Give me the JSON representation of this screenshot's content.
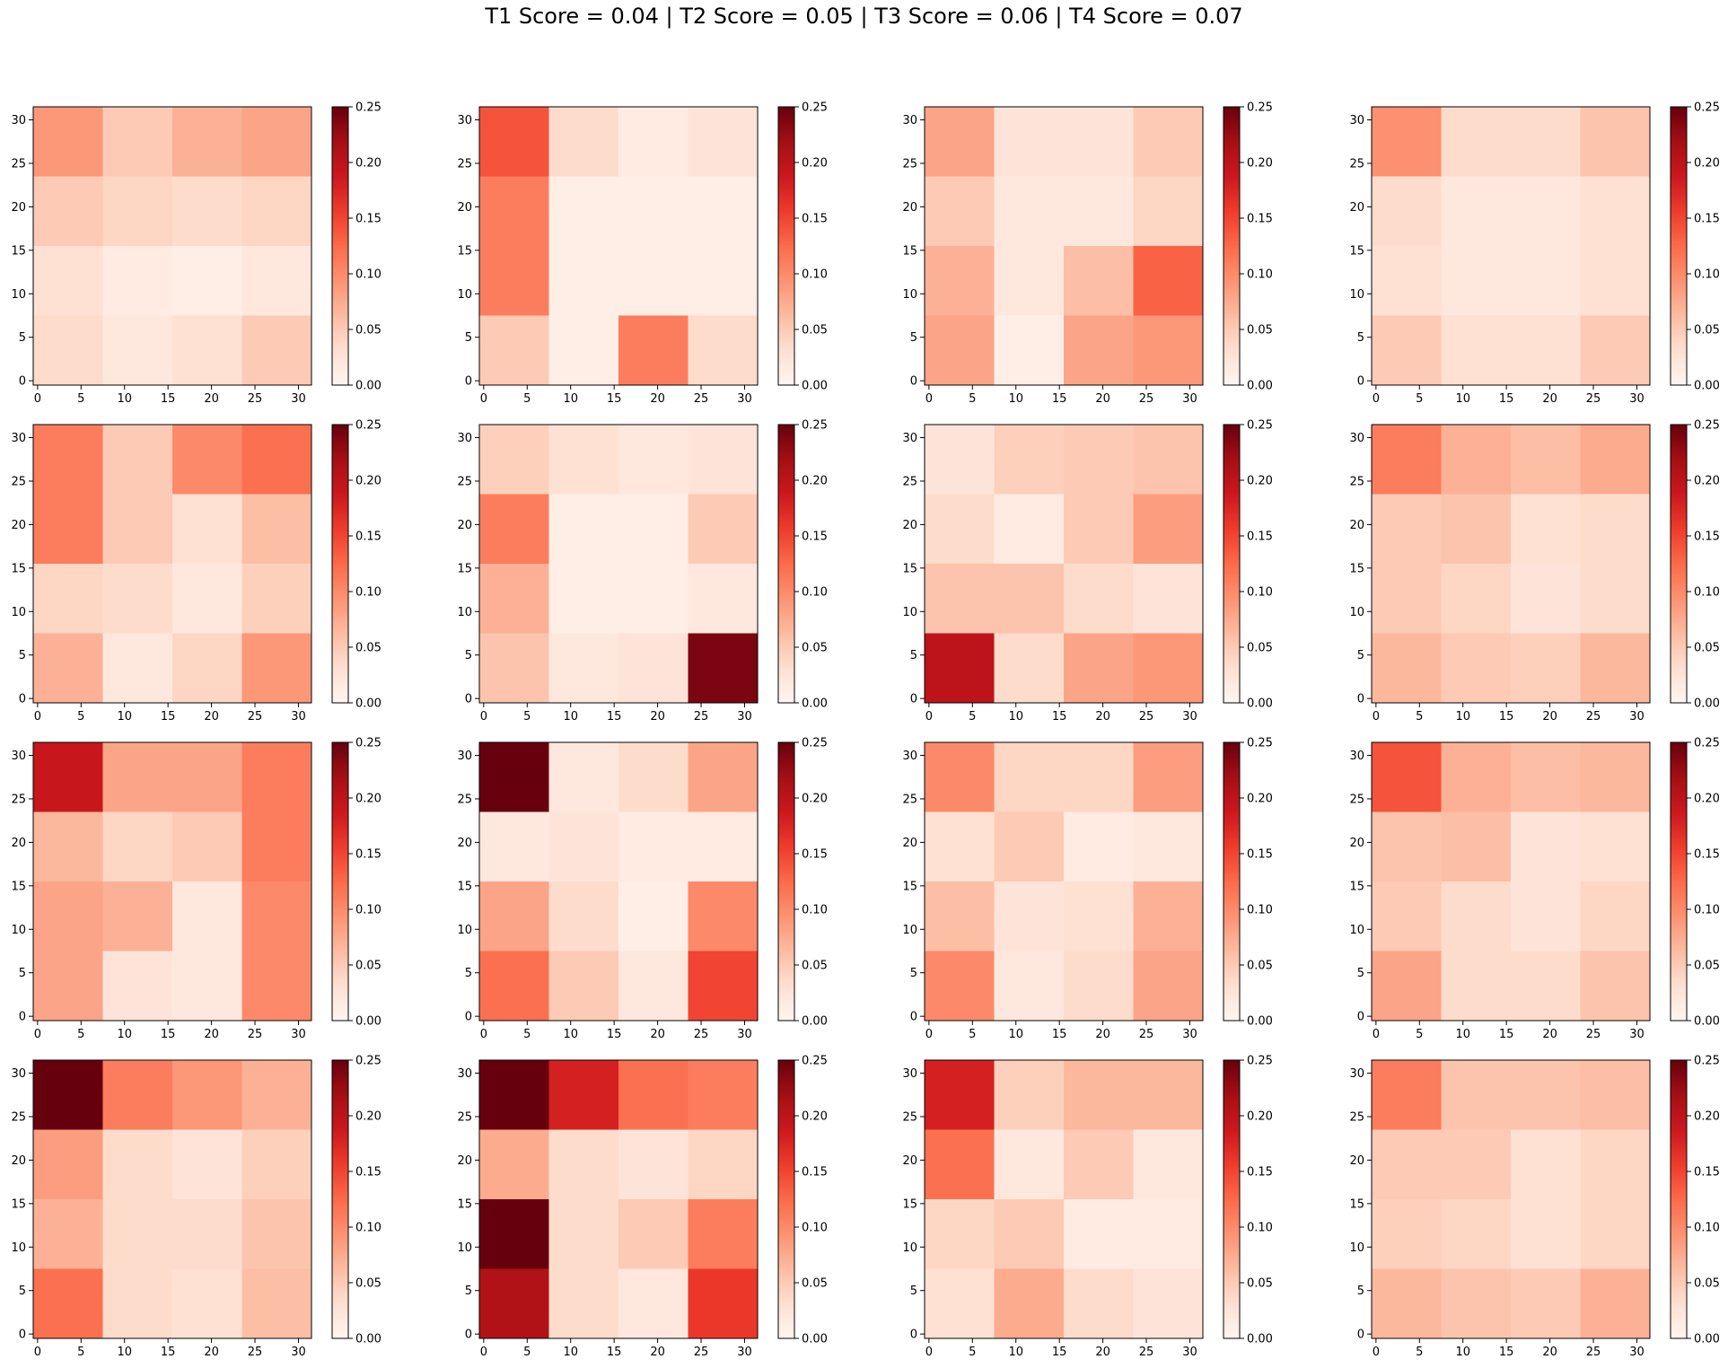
{
  "title": "T1 Score = 0.04 | T2 Score = 0.05 | T3 Score = 0.06 | T4 Score = 0.07",
  "chart_data": {
    "type": "heatmap",
    "grid": {
      "rows": 4,
      "cols": 4
    },
    "colormap": "Reds",
    "vmin": 0.0,
    "vmax": 0.25,
    "colorbar_ticks": [
      "0.00",
      "0.05",
      "0.10",
      "0.15",
      "0.20",
      "0.25"
    ],
    "colorbar_tick_values": [
      0,
      0.05,
      0.1,
      0.15,
      0.2,
      0.25
    ],
    "axis_range": [
      0,
      31
    ],
    "x_ticks": [
      0,
      5,
      10,
      15,
      20,
      25,
      30
    ],
    "y_ticks": [
      0,
      5,
      10,
      15,
      20,
      25,
      30
    ],
    "cell_size": 8,
    "matrix_rows_order": "top-to-bottom (y 24-31, 16-23, 8-15, 0-7)",
    "panels": [
      [
        [
          0.09,
          0.05,
          0.07,
          0.08
        ],
        [
          0.05,
          0.04,
          0.035,
          0.04
        ],
        [
          0.03,
          0.015,
          0.01,
          0.02
        ],
        [
          0.035,
          0.02,
          0.03,
          0.05
        ]
      ],
      [
        [
          0.14,
          0.035,
          0.015,
          0.025
        ],
        [
          0.11,
          0.01,
          0.01,
          0.01
        ],
        [
          0.11,
          0.01,
          0.01,
          0.01
        ],
        [
          0.05,
          0.01,
          0.11,
          0.035
        ]
      ],
      [
        [
          0.08,
          0.025,
          0.025,
          0.05
        ],
        [
          0.05,
          0.02,
          0.02,
          0.04
        ],
        [
          0.07,
          0.02,
          0.06,
          0.13
        ],
        [
          0.08,
          0.01,
          0.08,
          0.09
        ]
      ],
      [
        [
          0.095,
          0.035,
          0.035,
          0.055
        ],
        [
          0.035,
          0.02,
          0.02,
          0.03
        ],
        [
          0.03,
          0.02,
          0.02,
          0.03
        ],
        [
          0.05,
          0.03,
          0.03,
          0.05
        ]
      ],
      [
        [
          0.11,
          0.05,
          0.1,
          0.12
        ],
        [
          0.11,
          0.05,
          0.03,
          0.06
        ],
        [
          0.04,
          0.035,
          0.02,
          0.045
        ],
        [
          0.07,
          0.02,
          0.04,
          0.09
        ]
      ],
      [
        [
          0.045,
          0.03,
          0.02,
          0.025
        ],
        [
          0.11,
          0.01,
          0.01,
          0.05
        ],
        [
          0.07,
          0.01,
          0.01,
          0.02
        ],
        [
          0.055,
          0.02,
          0.025,
          0.24
        ]
      ],
      [
        [
          0.025,
          0.045,
          0.05,
          0.055
        ],
        [
          0.035,
          0.015,
          0.05,
          0.085
        ],
        [
          0.055,
          0.055,
          0.035,
          0.025
        ],
        [
          0.2,
          0.035,
          0.08,
          0.09
        ]
      ],
      [
        [
          0.11,
          0.07,
          0.06,
          0.075
        ],
        [
          0.05,
          0.055,
          0.03,
          0.035
        ],
        [
          0.05,
          0.04,
          0.025,
          0.035
        ],
        [
          0.065,
          0.05,
          0.045,
          0.065
        ]
      ],
      [
        [
          0.19,
          0.08,
          0.08,
          0.11
        ],
        [
          0.065,
          0.04,
          0.05,
          0.11
        ],
        [
          0.08,
          0.07,
          0.02,
          0.1
        ],
        [
          0.08,
          0.025,
          0.02,
          0.1
        ]
      ],
      [
        [
          0.25,
          0.02,
          0.035,
          0.08
        ],
        [
          0.02,
          0.025,
          0.015,
          0.015
        ],
        [
          0.08,
          0.035,
          0.01,
          0.1
        ],
        [
          0.12,
          0.05,
          0.02,
          0.15
        ]
      ],
      [
        [
          0.1,
          0.04,
          0.04,
          0.085
        ],
        [
          0.03,
          0.05,
          0.015,
          0.02
        ],
        [
          0.06,
          0.025,
          0.03,
          0.07
        ],
        [
          0.1,
          0.02,
          0.035,
          0.08
        ]
      ],
      [
        [
          0.14,
          0.07,
          0.06,
          0.065
        ],
        [
          0.055,
          0.06,
          0.025,
          0.03
        ],
        [
          0.05,
          0.035,
          0.025,
          0.04
        ],
        [
          0.08,
          0.035,
          0.035,
          0.055
        ]
      ],
      [
        [
          0.25,
          0.11,
          0.09,
          0.07
        ],
        [
          0.085,
          0.035,
          0.025,
          0.045
        ],
        [
          0.07,
          0.035,
          0.035,
          0.055
        ],
        [
          0.12,
          0.035,
          0.03,
          0.06
        ]
      ],
      [
        [
          0.25,
          0.18,
          0.12,
          0.11
        ],
        [
          0.075,
          0.035,
          0.025,
          0.04
        ],
        [
          0.25,
          0.035,
          0.05,
          0.11
        ],
        [
          0.21,
          0.035,
          0.02,
          0.16
        ]
      ],
      [
        [
          0.18,
          0.045,
          0.065,
          0.065
        ],
        [
          0.12,
          0.02,
          0.05,
          0.02
        ],
        [
          0.04,
          0.05,
          0.015,
          0.015
        ],
        [
          0.03,
          0.075,
          0.035,
          0.025
        ]
      ],
      [
        [
          0.11,
          0.055,
          0.055,
          0.06
        ],
        [
          0.05,
          0.05,
          0.03,
          0.04
        ],
        [
          0.045,
          0.04,
          0.03,
          0.04
        ],
        [
          0.065,
          0.055,
          0.05,
          0.07
        ]
      ]
    ]
  }
}
